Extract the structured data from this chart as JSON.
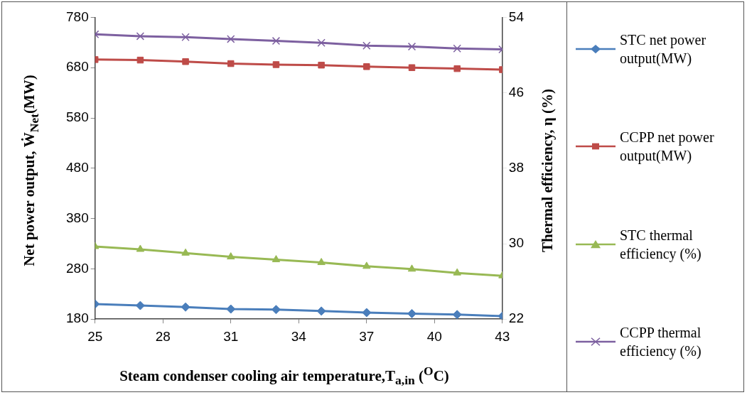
{
  "chart_data": {
    "type": "line",
    "xlabel": "Steam condenser cooling air temperature,T$_{a,in}$ ($^{O}$C)",
    "ylabel": "Net power output, Ẇ$_{Net}$(MW)",
    "y2label": "Thermal efficiency, η (%)",
    "x": [
      25,
      27,
      29,
      31,
      33,
      35,
      37,
      39,
      41,
      43
    ],
    "xlim": [
      25,
      43
    ],
    "xticks": [
      25,
      28,
      31,
      34,
      37,
      40,
      43
    ],
    "ylim": [
      180,
      780
    ],
    "yticks": [
      180,
      280,
      380,
      480,
      580,
      680,
      780
    ],
    "y2lim": [
      22,
      54
    ],
    "y2ticks": [
      22,
      30,
      38,
      46,
      54
    ],
    "grid": false,
    "legend": "right",
    "line_style": "solid",
    "series": [
      {
        "name": "STC net power output(MW)",
        "color": "#4a7ebb",
        "marker": "diamond",
        "values": [
          210,
          207,
          204,
          200,
          199,
          196,
          193,
          191,
          189,
          186
        ]
      },
      {
        "name": "CCPP net power output(MW)",
        "color": "#be4b48",
        "marker": "square",
        "values": [
          696,
          695,
          692,
          688,
          686,
          685,
          682,
          680,
          678,
          676
        ]
      },
      {
        "name": "STC thermal efficiency (%)",
        "color": "#98b954",
        "marker": "triangle",
        "axis": "y2",
        "values": [
          29.7,
          29.4,
          29.0,
          28.6,
          28.3,
          28.0,
          27.6,
          27.3,
          26.9,
          26.6
        ]
      },
      {
        "name": "CCPP thermal efficiency (%)",
        "color": "#7d60a0",
        "marker": "cross",
        "axis": "y2",
        "values": [
          52.2,
          52.0,
          51.9,
          51.7,
          51.5,
          51.3,
          51.0,
          50.9,
          50.7,
          50.6
        ]
      }
    ]
  }
}
